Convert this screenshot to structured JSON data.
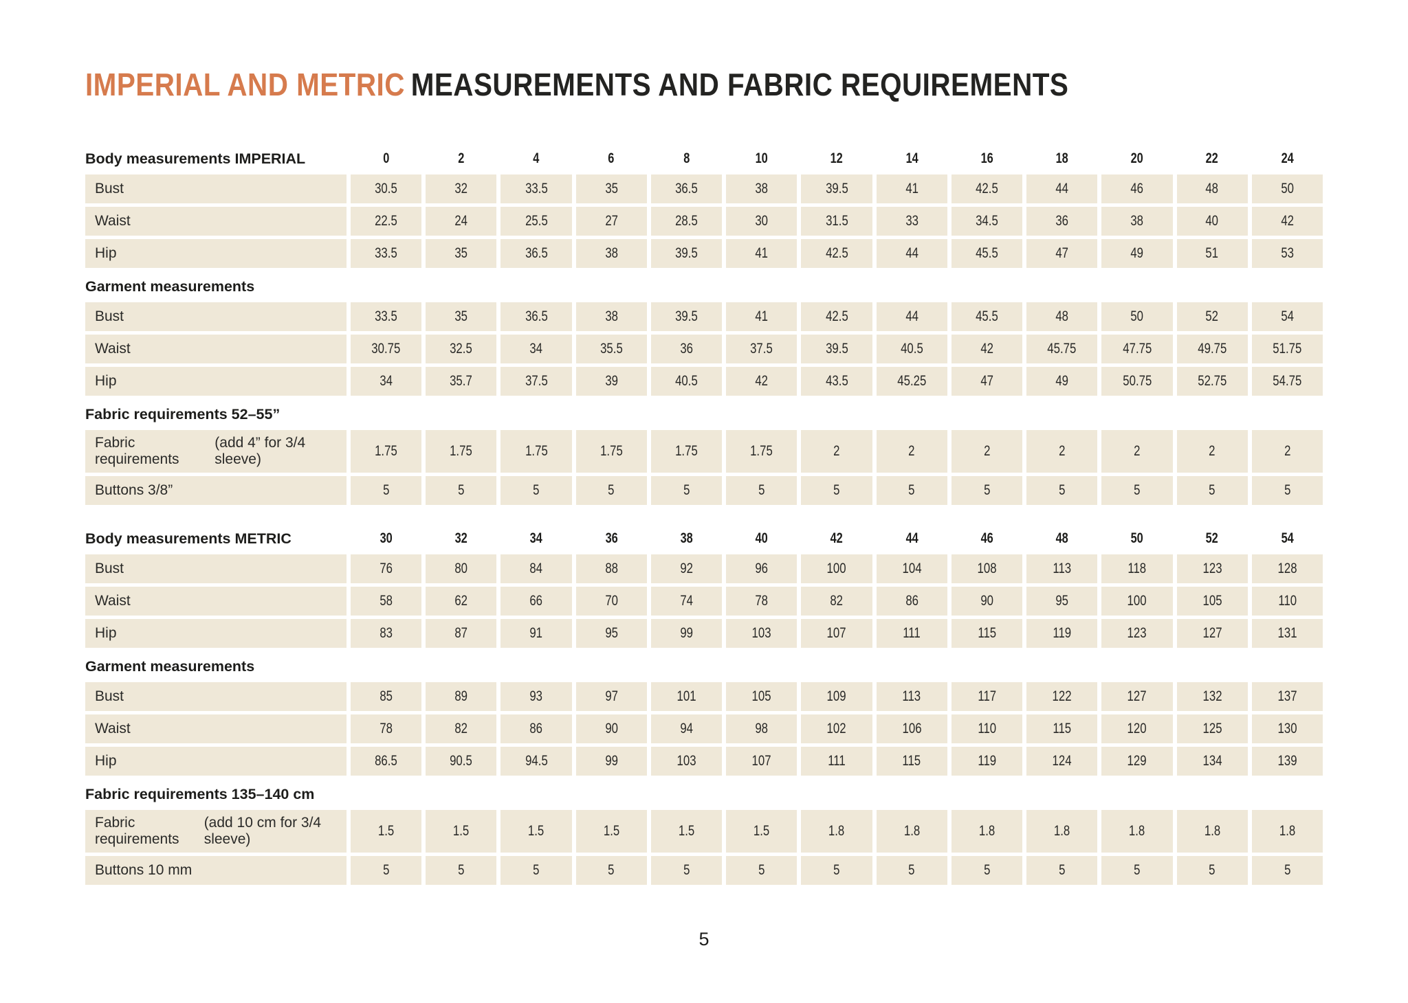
{
  "page": {
    "title_accent": "IMPERIAL AND METRIC",
    "title_rest": "MEASUREMENTS AND FABRIC REQUIREMENTS",
    "page_number": "5"
  },
  "colors": {
    "accent_orange": "#d67b4d",
    "cell_beige": "#efe8d8",
    "text_dark": "#1d1d1b"
  },
  "chart_data": {
    "type": "table",
    "title": "IMPERIAL AND METRIC MEASUREMENTS AND FABRIC REQUIREMENTS",
    "sections": [
      {
        "header": "Body measurements IMPERIAL",
        "sizes": [
          "0",
          "2",
          "4",
          "6",
          "8",
          "10",
          "12",
          "14",
          "16",
          "18",
          "20",
          "22",
          "24"
        ],
        "rows": [
          {
            "label": "Bust",
            "sublabel": "",
            "values": [
              "30.5",
              "32",
              "33.5",
              "35",
              "36.5",
              "38",
              "39.5",
              "41",
              "42.5",
              "44",
              "46",
              "48",
              "50"
            ]
          },
          {
            "label": "Waist",
            "sublabel": "",
            "values": [
              "22.5",
              "24",
              "25.5",
              "27",
              "28.5",
              "30",
              "31.5",
              "33",
              "34.5",
              "36",
              "38",
              "40",
              "42"
            ]
          },
          {
            "label": "Hip",
            "sublabel": "",
            "values": [
              "33.5",
              "35",
              "36.5",
              "38",
              "39.5",
              "41",
              "42.5",
              "44",
              "45.5",
              "47",
              "49",
              "51",
              "53"
            ]
          }
        ]
      },
      {
        "header": "Garment measurements",
        "sizes": [],
        "rows": [
          {
            "label": "Bust",
            "sublabel": "",
            "values": [
              "33.5",
              "35",
              "36.5",
              "38",
              "39.5",
              "41",
              "42.5",
              "44",
              "45.5",
              "48",
              "50",
              "52",
              "54"
            ]
          },
          {
            "label": "Waist",
            "sublabel": "",
            "values": [
              "30.75",
              "32.5",
              "34",
              "35.5",
              "36",
              "37.5",
              "39.5",
              "40.5",
              "42",
              "45.75",
              "47.75",
              "49.75",
              "51.75"
            ]
          },
          {
            "label": "Hip",
            "sublabel": "",
            "values": [
              "34",
              "35.7",
              "37.5",
              "39",
              "40.5",
              "42",
              "43.5",
              "45.25",
              "47",
              "49",
              "50.75",
              "52.75",
              "54.75"
            ]
          }
        ]
      },
      {
        "header": "Fabric requirements 52–55”",
        "sizes": [],
        "rows": [
          {
            "label": "Fabric requirements",
            "sublabel": "(add 4” for 3/4 sleeve)",
            "values": [
              "1.75",
              "1.75",
              "1.75",
              "1.75",
              "1.75",
              "1.75",
              "2",
              "2",
              "2",
              "2",
              "2",
              "2",
              "2"
            ]
          },
          {
            "label": "Buttons 3/8”",
            "sublabel": "",
            "values": [
              "5",
              "5",
              "5",
              "5",
              "5",
              "5",
              "5",
              "5",
              "5",
              "5",
              "5",
              "5",
              "5"
            ]
          }
        ]
      },
      {
        "header": "Body measurements METRIC",
        "section_break": true,
        "sizes": [
          "30",
          "32",
          "34",
          "36",
          "38",
          "40",
          "42",
          "44",
          "46",
          "48",
          "50",
          "52",
          "54"
        ],
        "rows": [
          {
            "label": "Bust",
            "sublabel": "",
            "values": [
              "76",
              "80",
              "84",
              "88",
              "92",
              "96",
              "100",
              "104",
              "108",
              "113",
              "118",
              "123",
              "128"
            ]
          },
          {
            "label": "Waist",
            "sublabel": "",
            "values": [
              "58",
              "62",
              "66",
              "70",
              "74",
              "78",
              "82",
              "86",
              "90",
              "95",
              "100",
              "105",
              "110"
            ]
          },
          {
            "label": "Hip",
            "sublabel": "",
            "values": [
              "83",
              "87",
              "91",
              "95",
              "99",
              "103",
              "107",
              "111",
              "115",
              "119",
              "123",
              "127",
              "131"
            ]
          }
        ]
      },
      {
        "header": "Garment measurements",
        "sizes": [],
        "rows": [
          {
            "label": "Bust",
            "sublabel": "",
            "values": [
              "85",
              "89",
              "93",
              "97",
              "101",
              "105",
              "109",
              "113",
              "117",
              "122",
              "127",
              "132",
              "137"
            ]
          },
          {
            "label": "Waist",
            "sublabel": "",
            "values": [
              "78",
              "82",
              "86",
              "90",
              "94",
              "98",
              "102",
              "106",
              "110",
              "115",
              "120",
              "125",
              "130"
            ]
          },
          {
            "label": "Hip",
            "sublabel": "",
            "values": [
              "86.5",
              "90.5",
              "94.5",
              "99",
              "103",
              "107",
              "111",
              "115",
              "119",
              "124",
              "129",
              "134",
              "139"
            ]
          }
        ]
      },
      {
        "header": "Fabric requirements 135–140 cm",
        "sizes": [],
        "rows": [
          {
            "label": "Fabric requirements",
            "sublabel": "(add 10 cm for 3/4 sleeve)",
            "values": [
              "1.5",
              "1.5",
              "1.5",
              "1.5",
              "1.5",
              "1.5",
              "1.8",
              "1.8",
              "1.8",
              "1.8",
              "1.8",
              "1.8",
              "1.8"
            ]
          },
          {
            "label": "Buttons 10 mm",
            "sublabel": "",
            "values": [
              "5",
              "5",
              "5",
              "5",
              "5",
              "5",
              "5",
              "5",
              "5",
              "5",
              "5",
              "5",
              "5"
            ]
          }
        ]
      }
    ]
  }
}
